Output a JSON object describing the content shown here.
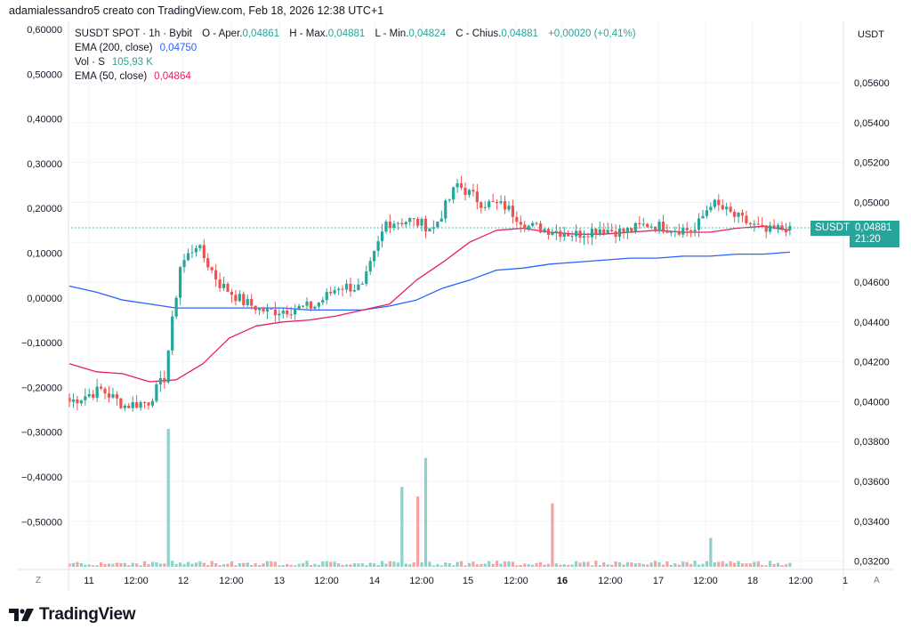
{
  "header": {
    "attribution": "adamialessandro5 creato con TradingView.com, Feb 18, 2026 12:38 UTC+1"
  },
  "legend": {
    "symbol_line": "SUSDT SPOT · 1h · Bybit",
    "open_label": "O - Aper.",
    "open_value": "0,04861",
    "high_label": "H - Max.",
    "high_value": "0,04881",
    "low_label": "L - Min.",
    "low_value": "0,04824",
    "close_label": "C - Chius.",
    "close_value": "0,04881",
    "change": "+0,00020 (+0,41%)",
    "ema200_label": "EMA (200, close)",
    "ema200_value": "0,04750",
    "vol_label": "Vol · S",
    "vol_value": "105,93 K",
    "ema50_label": "EMA (50, close)",
    "ema50_value": "0,04864"
  },
  "price_axis": {
    "currency": "USDT",
    "ticks": [
      "0,05600",
      "0,05400",
      "0,05200",
      "0,05000",
      "0,04600",
      "0,04400",
      "0,04200",
      "0,04000",
      "0,03800",
      "0,03600",
      "0,03400",
      "0,03200"
    ],
    "current_price": "0,04881",
    "countdown": "21:20",
    "symbol_tag": "SUSDT",
    "auto_button": "A"
  },
  "left_axis": {
    "ticks": [
      "0,60000",
      "0,50000",
      "0,40000",
      "0,30000",
      "0,20000",
      "0,10000",
      "0,00000",
      "−0,10000",
      "−0,20000",
      "−0,30000",
      "−0,40000",
      "−0,50000"
    ],
    "zoom_button": "Z"
  },
  "time_axis": {
    "ticks": [
      {
        "label": "11",
        "bold": false
      },
      {
        "label": "12:00",
        "bold": false
      },
      {
        "label": "12",
        "bold": false
      },
      {
        "label": "12:00",
        "bold": false
      },
      {
        "label": "13",
        "bold": false
      },
      {
        "label": "12:00",
        "bold": false
      },
      {
        "label": "14",
        "bold": false
      },
      {
        "label": "12:00",
        "bold": false
      },
      {
        "label": "15",
        "bold": false
      },
      {
        "label": "12:00",
        "bold": false
      },
      {
        "label": "16",
        "bold": true
      },
      {
        "label": "12:00",
        "bold": false
      },
      {
        "label": "17",
        "bold": false
      },
      {
        "label": "12:00",
        "bold": false
      },
      {
        "label": "18",
        "bold": false
      },
      {
        "label": "12:00",
        "bold": false
      },
      {
        "label": "1",
        "bold": false
      }
    ]
  },
  "colors": {
    "up": "#26a69a",
    "down": "#ef5350",
    "ema200": "#2962ff",
    "ema50": "#e91e63",
    "vol_up": "#8fd1c9",
    "vol_down": "#f4a3a1",
    "grid": "#f0f3fa",
    "badge": "#26a69a"
  },
  "branding": {
    "logo_text": "TradingView"
  },
  "chart_data": {
    "type": "candlestick",
    "title": "SUSDT SPOT · 1h · Bybit",
    "xlabel": "",
    "ylabel": "USDT",
    "ylim": [
      0.0318,
      0.0576
    ],
    "x_ticks": [
      "11",
      "12:00",
      "12",
      "12:00",
      "13",
      "12:00",
      "14",
      "12:00",
      "15",
      "12:00",
      "16",
      "12:00",
      "17",
      "12:00",
      "18",
      "12:00"
    ],
    "grid": true,
    "price_series_approx": {
      "x": [
        "Feb 10 22:00",
        "Feb 11 06:00",
        "Feb 11 12:00",
        "Feb 11 18:00",
        "Feb 11 22:00",
        "Feb 12 02:00",
        "Feb 12 06:00",
        "Feb 12 12:00",
        "Feb 12 18:00",
        "Feb 13 00:00",
        "Feb 13 12:00",
        "Feb 13 18:00",
        "Feb 14 00:00",
        "Feb 14 06:00",
        "Feb 14 12:00",
        "Feb 14 18:00",
        "Feb 15 00:00",
        "Feb 15 06:00",
        "Feb 15 12:00",
        "Feb 15 18:00",
        "Feb 16 00:00",
        "Feb 16 06:00",
        "Feb 16 12:00",
        "Feb 16 18:00",
        "Feb 17 00:00",
        "Feb 17 06:00",
        "Feb 17 12:00",
        "Feb 17 16:00",
        "Feb 17 22:00",
        "Feb 18 06:00",
        "Feb 18 12:00"
      ],
      "close": [
        0.04,
        0.0406,
        0.0398,
        0.04,
        0.0412,
        0.0468,
        0.0479,
        0.0459,
        0.045,
        0.0445,
        0.0448,
        0.0458,
        0.0457,
        0.049,
        0.0491,
        0.0487,
        0.0509,
        0.05,
        0.0498,
        0.0488,
        0.0486,
        0.0484,
        0.0487,
        0.0485,
        0.0489,
        0.0487,
        0.0486,
        0.05,
        0.0493,
        0.0485,
        0.0488
      ]
    },
    "series": [
      {
        "name": "EMA (200, close)",
        "last": 0.0475,
        "values_approx": [
          0.0458,
          0.0455,
          0.0451,
          0.0449,
          0.0447,
          0.0447,
          0.0447,
          0.0447,
          0.0447,
          0.0446,
          0.0446,
          0.0446,
          0.0448,
          0.0451,
          0.0457,
          0.0461,
          0.0466,
          0.0467,
          0.0469,
          0.047,
          0.0471,
          0.0472,
          0.0472,
          0.0473,
          0.0473,
          0.0474,
          0.0474,
          0.0475
        ]
      },
      {
        "name": "EMA (50, close)",
        "last": 0.04864,
        "values_approx": [
          0.0419,
          0.0415,
          0.0414,
          0.041,
          0.0411,
          0.0419,
          0.0432,
          0.0438,
          0.044,
          0.0441,
          0.0443,
          0.0446,
          0.0449,
          0.0461,
          0.047,
          0.048,
          0.0486,
          0.0487,
          0.0485,
          0.0484,
          0.0484,
          0.0485,
          0.0486,
          0.0485,
          0.0485,
          0.0487,
          0.0488,
          0.0486
        ]
      }
    ],
    "volume_peaks": [
      {
        "time": "Feb 11 23:00",
        "direction": "up",
        "relative": 1.0
      },
      {
        "time": "Feb 14 10:00",
        "direction": "up",
        "relative": 0.58
      },
      {
        "time": "Feb 14 14:00",
        "direction": "down",
        "relative": 0.51
      },
      {
        "time": "Feb 14 16:00",
        "direction": "up",
        "relative": 0.79
      },
      {
        "time": "Feb 16 00:00",
        "direction": "down",
        "relative": 0.46
      },
      {
        "time": "Feb 17 16:00",
        "direction": "up",
        "relative": 0.21
      }
    ],
    "last_price": 0.04881,
    "open": 0.04861,
    "high": 0.04881,
    "low": 0.04824,
    "close": 0.04881,
    "change": 0.0002,
    "change_pct": 0.41,
    "volume_last": "105.93K"
  }
}
